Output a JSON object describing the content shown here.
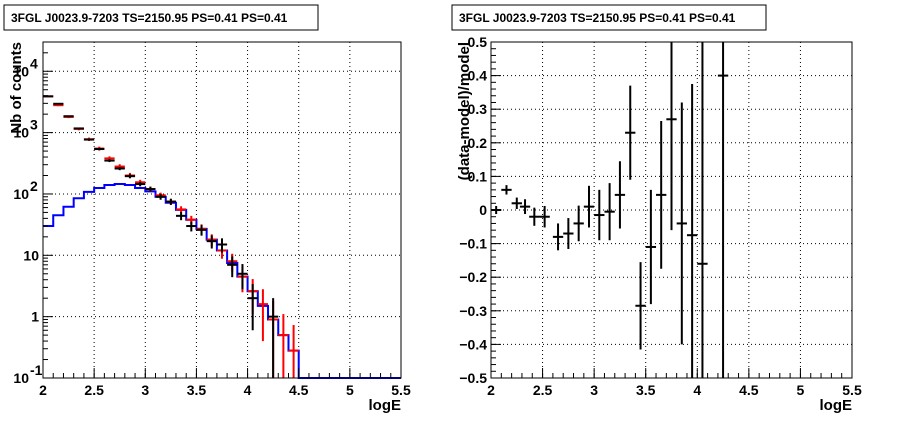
{
  "chart_data": [
    {
      "type": "histogram",
      "title": "3FGL J0023.9-7203 TS=2150.95 PS=0.41 PS=0.41",
      "xlabel": "logE",
      "ylabel": "Nb of counts",
      "xlim": [
        2,
        5.5
      ],
      "ylim": [
        0.1,
        30000
      ],
      "yscale": "log",
      "grid": true,
      "x_ticks": [
        {
          "v": 2,
          "label": "2"
        },
        {
          "v": 2.5,
          "label": "2.5"
        },
        {
          "v": 3,
          "label": "3"
        },
        {
          "v": 3.5,
          "label": "3.5"
        },
        {
          "v": 4,
          "label": "4"
        },
        {
          "v": 4.5,
          "label": "4.5"
        },
        {
          "v": 5,
          "label": "5"
        },
        {
          "v": 5.5,
          "label": "5.5"
        }
      ],
      "y_ticks": [
        {
          "v": 0.1,
          "label": "10",
          "exp": "-1"
        },
        {
          "v": 1,
          "label": "1",
          "exp": ""
        },
        {
          "v": 10,
          "label": "10",
          "exp": ""
        },
        {
          "v": 100,
          "label": "10",
          "exp": "2"
        },
        {
          "v": 1000,
          "label": "10",
          "exp": "3"
        },
        {
          "v": 10000,
          "label": "10",
          "exp": "4"
        }
      ],
      "bin_width": 0.1,
      "series": [
        {
          "role": "model-component",
          "color": "#0000ff",
          "style": "step",
          "x": [
            2.05,
            2.15,
            2.25,
            2.35,
            2.45,
            2.55,
            2.65,
            2.75,
            2.85,
            2.95,
            3.05,
            3.15,
            3.25,
            3.35,
            3.45,
            3.55,
            3.65,
            3.75,
            3.85,
            3.95,
            4.05,
            4.15,
            4.25,
            4.35,
            4.45,
            4.55,
            4.65,
            4.75,
            4.85,
            4.95,
            5.05,
            5.15,
            5.25,
            5.35,
            5.45
          ],
          "y": [
            30,
            45,
            62,
            85,
            108,
            125,
            140,
            145,
            140,
            125,
            110,
            90,
            72,
            55,
            38,
            27,
            18,
            12,
            7.5,
            4.5,
            2.6,
            1.5,
            0.9,
            0.5,
            0.28,
            0.1,
            0.1,
            0.1,
            0.1,
            0.1,
            0.1,
            0.1,
            0.1,
            0.1,
            0.1
          ]
        },
        {
          "role": "total-model",
          "color": "#ff0000",
          "style": "error-bars",
          "x": [
            2.05,
            2.15,
            2.25,
            2.35,
            2.45,
            2.55,
            2.65,
            2.75,
            2.85,
            2.95,
            3.05,
            3.15,
            3.25,
            3.35,
            3.45,
            3.55,
            3.65,
            3.75,
            3.85,
            3.95,
            4.05,
            4.15,
            4.25,
            4.35,
            4.45
          ],
          "y": [
            3900,
            2800,
            1800,
            1150,
            780,
            550,
            380,
            280,
            200,
            155,
            120,
            95,
            75,
            56,
            38,
            27,
            18,
            12,
            8,
            4.5,
            2.6,
            1.6,
            0.9,
            0.5,
            0.28
          ],
          "err": [
            120,
            100,
            80,
            60,
            50,
            40,
            30,
            25,
            20,
            15,
            12,
            10,
            8,
            7,
            6,
            5,
            4,
            3.2,
            2.6,
            2,
            1.5,
            1.2,
            0.9,
            0.6,
            0.45
          ]
        },
        {
          "role": "data",
          "color": "#000000",
          "style": "error-bars",
          "x": [
            2.05,
            2.15,
            2.25,
            2.35,
            2.45,
            2.55,
            2.65,
            2.75,
            2.85,
            2.95,
            3.05,
            3.15,
            3.25,
            3.35,
            3.45,
            3.55,
            3.65,
            3.75,
            3.85,
            3.95,
            4.05,
            4.25
          ],
          "y": [
            3900,
            2950,
            1850,
            1170,
            770,
            540,
            350,
            260,
            195,
            145,
            120,
            90,
            75,
            44,
            30,
            26,
            17,
            15,
            7,
            5,
            2,
            1
          ],
          "err": [
            62,
            54,
            43,
            34,
            28,
            23,
            19,
            16,
            14,
            12,
            11,
            9.5,
            8.7,
            6.6,
            5.5,
            5.1,
            4.1,
            3.9,
            2.6,
            2.2,
            1.4,
            1
          ]
        }
      ]
    },
    {
      "type": "scatter",
      "title": "3FGL J0023.9-7203 TS=2150.95 PS=0.41 PS=0.41",
      "xlabel": "logE",
      "ylabel": "(data-model)/model",
      "xlim": [
        2,
        5.5
      ],
      "ylim": [
        -0.5,
        0.5
      ],
      "grid": true,
      "x_ticks": [
        {
          "v": 2,
          "label": "2"
        },
        {
          "v": 2.5,
          "label": "2.5"
        },
        {
          "v": 3,
          "label": "3"
        },
        {
          "v": 3.5,
          "label": "3.5"
        },
        {
          "v": 4,
          "label": "4"
        },
        {
          "v": 4.5,
          "label": "4.5"
        },
        {
          "v": 5,
          "label": "5"
        },
        {
          "v": 5.5,
          "label": "5.5"
        }
      ],
      "y_ticks": [
        {
          "v": -0.5,
          "label": "−0.5"
        },
        {
          "v": -0.4,
          "label": "−0.4"
        },
        {
          "v": -0.3,
          "label": "−0.3"
        },
        {
          "v": -0.2,
          "label": "−0.2"
        },
        {
          "v": -0.1,
          "label": "−0.1"
        },
        {
          "v": 0,
          "label": "0"
        },
        {
          "v": 0.1,
          "label": "0.1"
        },
        {
          "v": 0.2,
          "label": "0.2"
        },
        {
          "v": 0.3,
          "label": "0.3"
        },
        {
          "v": 0.4,
          "label": "0.4"
        },
        {
          "v": 0.5,
          "label": "0.5"
        }
      ],
      "series": [
        {
          "role": "residuals",
          "color": "#000000",
          "x": [
            2.05,
            2.15,
            2.25,
            2.33,
            2.42,
            2.52,
            2.65,
            2.75,
            2.85,
            2.95,
            3.05,
            3.15,
            3.25,
            3.35,
            3.45,
            3.55,
            3.65,
            3.75,
            3.85,
            3.95,
            4.05,
            4.25
          ],
          "y": [
            0.0,
            0.06,
            0.02,
            0.01,
            -0.02,
            -0.02,
            -0.08,
            -0.07,
            -0.04,
            0.01,
            -0.015,
            -0.005,
            0.045,
            0.23,
            -0.285,
            -0.11,
            0.045,
            0.27,
            -0.04,
            -0.075,
            -0.16,
            0.4
          ],
          "err": [
            0.012,
            0.014,
            0.017,
            0.022,
            0.027,
            0.032,
            0.04,
            0.046,
            0.053,
            0.062,
            0.075,
            0.085,
            0.1,
            0.14,
            0.13,
            0.17,
            0.22,
            0.33,
            0.36,
            0.45,
            0.7,
            1.0
          ]
        }
      ]
    }
  ]
}
